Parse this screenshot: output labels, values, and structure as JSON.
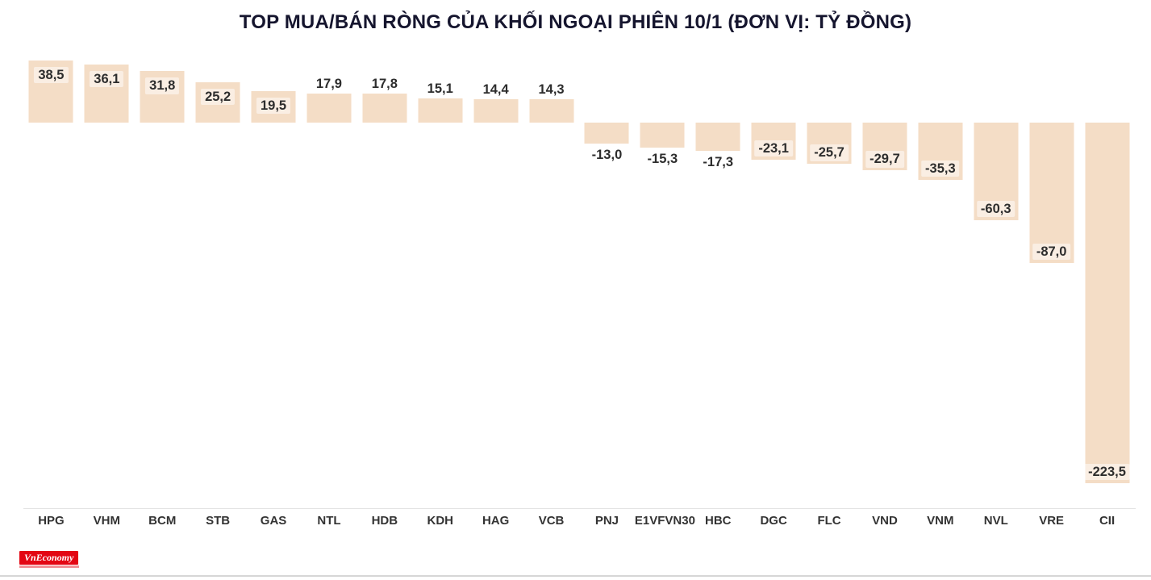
{
  "title": "TOP MUA/BÁN RÒNG CỦA KHỐI NGOẠI PHIÊN 10/1 (ĐƠN VỊ: TỶ ĐỒNG)",
  "logo": {
    "text": "VnEconomy"
  },
  "colors": {
    "bar": "#f4ddc6",
    "title_text": "#15152e",
    "value_label_text": "#2d2d2d",
    "category_text": "#333333",
    "logo_background": "#e30613"
  },
  "chart_data": {
    "type": "bar",
    "title": "TOP MUA/BÁN RÒNG CỦA KHỐI NGOẠI PHIÊN 10/1 (ĐƠN VỊ: TỶ ĐỒNG)",
    "unit": "tỷ đồng",
    "categories": [
      "HPG",
      "VHM",
      "BCM",
      "STB",
      "GAS",
      "NTL",
      "HDB",
      "KDH",
      "HAG",
      "VCB",
      "PNJ",
      "E1VFVN30",
      "HBC",
      "DGC",
      "FLC",
      "VND",
      "VNM",
      "NVL",
      "VRE",
      "CII"
    ],
    "values": [
      38.5,
      36.1,
      31.8,
      25.2,
      19.5,
      17.9,
      17.8,
      15.1,
      14.4,
      14.3,
      -13.0,
      -15.3,
      -17.3,
      -23.1,
      -25.7,
      -29.7,
      -35.3,
      -60.3,
      -87.0,
      -223.5
    ],
    "value_labels": [
      "38,5",
      "36,1",
      "31,8",
      "25,2",
      "19,5",
      "17,9",
      "17,8",
      "15,1",
      "14,4",
      "14,3",
      "-13,0",
      "-15,3",
      "-17,3",
      "-23,1",
      "-25,7",
      "-29,7",
      "-35,3",
      "-60,3",
      "-87,0",
      "-223,5"
    ],
    "ylim": [
      -235,
      45
    ],
    "grid": false,
    "legend": false,
    "bar_color": "#f4ddc6"
  }
}
